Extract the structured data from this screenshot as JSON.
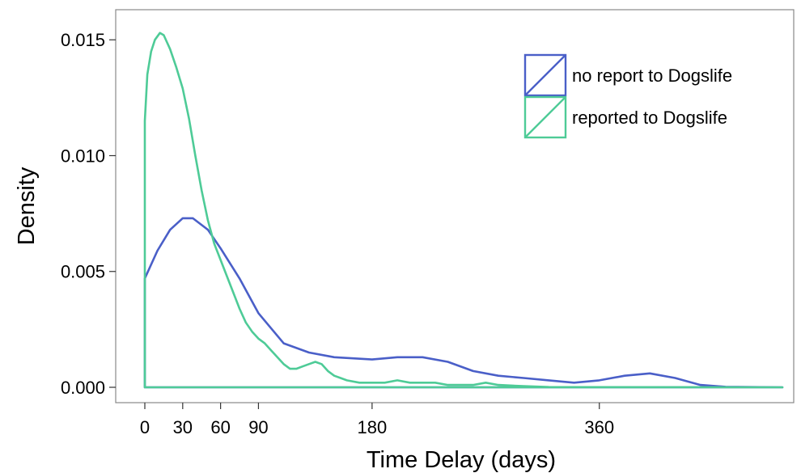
{
  "chart_data": {
    "type": "line",
    "xlabel": "Time Delay (days)",
    "ylabel": "Density",
    "xlim": [
      0,
      505
    ],
    "ylim": [
      0,
      0.0163
    ],
    "x_ticks": [
      {
        "value": 0,
        "label": "0"
      },
      {
        "value": 30,
        "label": "30"
      },
      {
        "value": 60,
        "label": "60"
      },
      {
        "value": 90,
        "label": "90"
      },
      {
        "value": 180,
        "label": "180"
      },
      {
        "value": 360,
        "label": "360"
      }
    ],
    "y_ticks": [
      {
        "value": 0,
        "label": "0.000"
      },
      {
        "value": 0.005,
        "label": "0.005"
      },
      {
        "value": 0.01,
        "label": "0.010"
      },
      {
        "value": 0.015,
        "label": "0.015"
      }
    ],
    "legend_position": "top-right",
    "series": [
      {
        "name": "no report to Dogslife",
        "color": "#4a5fc8",
        "x": [
          0,
          10,
          20,
          30,
          38,
          50,
          60,
          75,
          90,
          110,
          130,
          150,
          180,
          200,
          220,
          240,
          260,
          280,
          300,
          320,
          340,
          360,
          380,
          400,
          420,
          440,
          460,
          505
        ],
        "y": [
          0.0047,
          0.0059,
          0.0068,
          0.0073,
          0.0073,
          0.0068,
          0.006,
          0.0047,
          0.0032,
          0.0019,
          0.0015,
          0.0013,
          0.0012,
          0.0013,
          0.0013,
          0.0011,
          0.0007,
          0.0005,
          0.0004,
          0.0003,
          0.0002,
          0.0003,
          0.0005,
          0.0006,
          0.0004,
          0.0001,
          2e-05,
          0.0
        ]
      },
      {
        "name": "reported to Dogslife",
        "color": "#4ecb97",
        "x": [
          0,
          2,
          5,
          8,
          12,
          15,
          20,
          25,
          30,
          35,
          40,
          45,
          50,
          55,
          60,
          65,
          70,
          75,
          80,
          85,
          90,
          95,
          100,
          105,
          110,
          115,
          120,
          125,
          130,
          135,
          140,
          145,
          150,
          155,
          160,
          170,
          180,
          190,
          200,
          210,
          220,
          230,
          240,
          250,
          260,
          270,
          280,
          300,
          320,
          505
        ],
        "y": [
          0.0115,
          0.0135,
          0.0145,
          0.015,
          0.0153,
          0.0152,
          0.0146,
          0.0138,
          0.0129,
          0.0116,
          0.01,
          0.0085,
          0.0072,
          0.0062,
          0.0055,
          0.0048,
          0.0041,
          0.0034,
          0.0028,
          0.0024,
          0.0021,
          0.0019,
          0.0016,
          0.0013,
          0.001,
          0.0008,
          0.0008,
          0.0009,
          0.001,
          0.0011,
          0.001,
          0.0007,
          0.0005,
          0.0004,
          0.0003,
          0.0002,
          0.0002,
          0.0002,
          0.0003,
          0.0002,
          0.0002,
          0.0002,
          0.0001,
          0.0001,
          0.0001,
          0.0002,
          0.0001,
          5e-05,
          1e-05,
          0.0
        ]
      }
    ]
  }
}
